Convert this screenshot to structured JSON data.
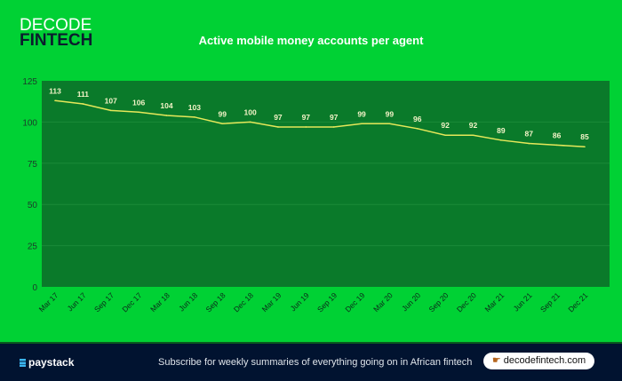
{
  "brand": {
    "line1": "DECODE",
    "line2": "FINTECH"
  },
  "chart_data": {
    "type": "line",
    "title": "Active mobile money accounts per agent",
    "categories": [
      "Mar 17",
      "Jun 17",
      "Sep 17",
      "Dec 17",
      "Mar 18",
      "Jun 18",
      "Sep 18",
      "Dec 18",
      "Mar 19",
      "Jun 19",
      "Sep 19",
      "Dec 19",
      "Mar 20",
      "Jun 20",
      "Sep 20",
      "Dec 20",
      "Mar 21",
      "Jun 21",
      "Sep 21",
      "Dec 21"
    ],
    "values": [
      113,
      111,
      107,
      106,
      104,
      103,
      99,
      100,
      97,
      97,
      97,
      99,
      99,
      96,
      92,
      92,
      89,
      87,
      86,
      85
    ],
    "ylim": [
      0,
      125
    ],
    "yticks": [
      0,
      25,
      50,
      75,
      100,
      125
    ],
    "grid": true,
    "line_color": "#e6e85a",
    "plot_bg": "#0a7a2a"
  },
  "footer": {
    "brand": "paystack",
    "text": "Subscribe for weekly summaries of everything going on in African fintech",
    "link": "decodefintech.com"
  }
}
